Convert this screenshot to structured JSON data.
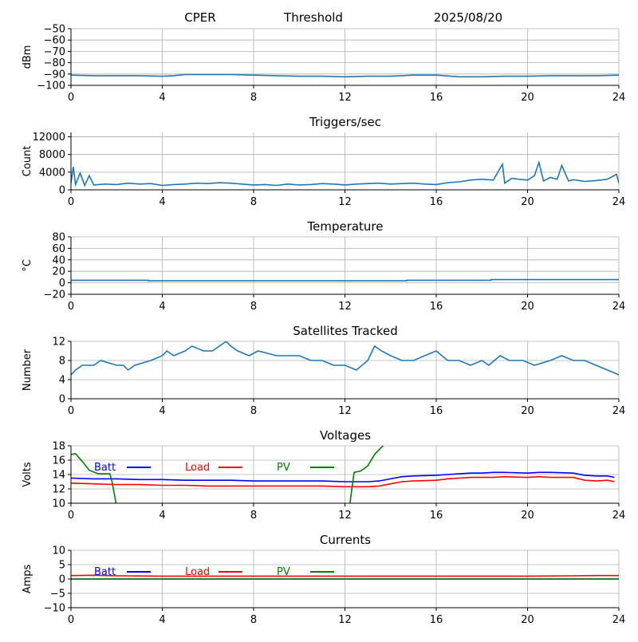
{
  "header": {
    "station": "CPER",
    "mode": "Threshold",
    "date": "2025/08/20"
  },
  "chart_data": [
    {
      "type": "line",
      "title": "",
      "ylabel": "dBm",
      "xlim": [
        0,
        24
      ],
      "ylim": [
        -100,
        -50
      ],
      "xticks": [
        0,
        4,
        8,
        12,
        16,
        20,
        24
      ],
      "yticks": [
        -100,
        -90,
        -80,
        -70,
        -60,
        -50
      ],
      "grid": true,
      "series": [
        {
          "color": "#1f77b4",
          "x": [
            0,
            1,
            2,
            3,
            4,
            4.5,
            5,
            6,
            7,
            8,
            9,
            10,
            11,
            12,
            13,
            14,
            15,
            16,
            17,
            18,
            19,
            20,
            21,
            22,
            23,
            24
          ],
          "y": [
            -91,
            -91.5,
            -91.5,
            -91.5,
            -92,
            -91.5,
            -90.5,
            -90.5,
            -90.5,
            -91,
            -91.5,
            -92,
            -92,
            -92.5,
            -92,
            -92,
            -91,
            -91,
            -92.5,
            -92.5,
            -92,
            -92,
            -91.5,
            -91.5,
            -91.5,
            -91
          ]
        }
      ]
    },
    {
      "type": "line",
      "title": "Triggers/sec",
      "ylabel": "Count",
      "xlim": [
        0,
        24
      ],
      "ylim": [
        0,
        13000
      ],
      "xticks": [
        0,
        4,
        8,
        12,
        16,
        20,
        24
      ],
      "yticks": [
        0,
        4000,
        8000,
        12000
      ],
      "grid": true,
      "series": [
        {
          "color": "#1f77b4",
          "x": [
            0,
            0.1,
            0.2,
            0.4,
            0.6,
            0.8,
            1,
            1.5,
            2,
            2.5,
            3,
            3.5,
            4,
            4.5,
            5,
            5.5,
            6,
            6.5,
            7,
            7.5,
            8,
            8.5,
            9,
            9.5,
            10,
            10.5,
            11,
            11.5,
            12,
            12.5,
            13,
            13.5,
            14,
            14.5,
            15,
            15.5,
            16,
            16.5,
            17,
            17.5,
            18,
            18.5,
            18.9,
            19,
            19.3,
            19.6,
            20,
            20.3,
            20.5,
            20.7,
            21,
            21.3,
            21.5,
            21.8,
            22,
            22.5,
            23,
            23.5,
            23.9,
            24
          ],
          "y": [
            1500,
            5200,
            1200,
            3800,
            1000,
            3200,
            1100,
            1300,
            1200,
            1500,
            1300,
            1400,
            1000,
            1200,
            1300,
            1500,
            1400,
            1600,
            1500,
            1300,
            1100,
            1200,
            1000,
            1300,
            1100,
            1200,
            1400,
            1300,
            1100,
            1300,
            1400,
            1500,
            1300,
            1400,
            1500,
            1300,
            1200,
            1600,
            1800,
            2200,
            2400,
            2200,
            5800,
            1500,
            2600,
            2400,
            2200,
            3200,
            6200,
            2000,
            2800,
            2400,
            5500,
            2000,
            2300,
            1900,
            2100,
            2400,
            3500,
            1500
          ]
        }
      ]
    },
    {
      "type": "line",
      "title": "Temperature",
      "ylabel": "°C",
      "xlim": [
        0,
        24
      ],
      "ylim": [
        -20,
        80
      ],
      "xticks": [
        0,
        4,
        8,
        12,
        16,
        20,
        24
      ],
      "yticks": [
        -20,
        0,
        20,
        40,
        60,
        80
      ],
      "grid": true,
      "series": [
        {
          "color": "#1f77b4",
          "x": [
            0,
            3.4,
            3.4,
            14.7,
            14.7,
            18.4,
            18.4,
            24
          ],
          "y": [
            4.5,
            4.5,
            3.5,
            3.5,
            4.5,
            4.5,
            5.5,
            5.5
          ]
        }
      ]
    },
    {
      "type": "line",
      "title": "Satellites Tracked",
      "ylabel": "Number",
      "xlim": [
        0,
        24
      ],
      "ylim": [
        0,
        12
      ],
      "xticks": [
        0,
        4,
        8,
        12,
        16,
        20,
        24
      ],
      "yticks": [
        0,
        4,
        8,
        12
      ],
      "grid": true,
      "series": [
        {
          "color": "#1f77b4",
          "x": [
            0,
            0.2,
            0.5,
            1,
            1.3,
            2,
            2.3,
            2.5,
            2.8,
            3.5,
            4,
            4.2,
            4.5,
            5,
            5.3,
            5.8,
            6.2,
            6.8,
            7,
            7.3,
            7.8,
            8.2,
            9,
            10,
            10.5,
            11,
            11.5,
            12,
            12.5,
            13,
            13.3,
            13.6,
            14,
            14.5,
            15,
            15.5,
            16,
            16.5,
            17,
            17.5,
            18,
            18.3,
            18.8,
            19.2,
            19.8,
            20.3,
            21,
            21.5,
            22,
            22.5,
            23,
            23.5,
            24
          ],
          "y": [
            5,
            6,
            7,
            7,
            8,
            7,
            7,
            6,
            7,
            8,
            9,
            10,
            9,
            10,
            11,
            10,
            10,
            12,
            11,
            10,
            9,
            10,
            9,
            9,
            8,
            8,
            7,
            7,
            6,
            8,
            11,
            10,
            9,
            8,
            8,
            9,
            10,
            8,
            8,
            7,
            8,
            7,
            9,
            8,
            8,
            7,
            8,
            9,
            8,
            8,
            7,
            6,
            5
          ]
        }
      ]
    },
    {
      "type": "line",
      "title": "Voltages",
      "ylabel": "Volts",
      "xlim": [
        0,
        24
      ],
      "ylim": [
        10,
        18
      ],
      "xticks": [
        0,
        4,
        8,
        12,
        16,
        20,
        24
      ],
      "yticks": [
        10,
        12,
        14,
        16,
        18
      ],
      "grid": true,
      "legend": [
        "Batt",
        "Load",
        "PV"
      ],
      "legend_placement": "top-left",
      "series": [
        {
          "name": "Batt",
          "color": "#0000ff",
          "x": [
            0,
            1,
            2,
            3,
            4,
            5,
            6,
            7,
            8,
            9,
            10,
            11,
            12,
            12.5,
            13,
            13.5,
            14,
            14.5,
            15,
            16,
            16.5,
            17,
            17.5,
            18,
            18.5,
            19,
            20,
            20.5,
            21,
            22,
            22.5,
            23,
            23.5,
            23.8
          ],
          "y": [
            13.5,
            13.4,
            13.4,
            13.3,
            13.3,
            13.2,
            13.2,
            13.2,
            13.1,
            13.1,
            13.1,
            13.1,
            13.0,
            13.0,
            13.0,
            13.1,
            13.4,
            13.7,
            13.8,
            13.9,
            14.0,
            14.1,
            14.2,
            14.2,
            14.3,
            14.3,
            14.2,
            14.3,
            14.3,
            14.2,
            13.9,
            13.8,
            13.8,
            13.6
          ]
        },
        {
          "name": "Load",
          "color": "#ff0000",
          "x": [
            0,
            1,
            2,
            3,
            4,
            5,
            6,
            7,
            8,
            9,
            10,
            11,
            12,
            12.5,
            13,
            13.5,
            14,
            14.5,
            15,
            16,
            16.5,
            17,
            17.5,
            18,
            18.5,
            19,
            20,
            20.5,
            21,
            22,
            22.5,
            23,
            23.5,
            23.8
          ],
          "y": [
            12.8,
            12.7,
            12.6,
            12.6,
            12.5,
            12.5,
            12.4,
            12.4,
            12.4,
            12.4,
            12.4,
            12.4,
            12.3,
            12.3,
            12.3,
            12.4,
            12.7,
            13.0,
            13.1,
            13.2,
            13.4,
            13.5,
            13.6,
            13.6,
            13.6,
            13.7,
            13.6,
            13.7,
            13.6,
            13.6,
            13.2,
            13.1,
            13.2,
            13.0
          ]
        },
        {
          "name": "PV",
          "color": "#008000",
          "x": [
            0,
            0.2,
            0.5,
            0.8,
            1.2,
            1.5,
            1.7,
            1.8,
            2.0,
            2.2,
            12.0,
            12.2,
            12.4,
            12.7,
            13.0,
            13.3,
            13.6,
            13.9
          ],
          "y": [
            16.8,
            16.9,
            15.8,
            14.6,
            14.1,
            14.1,
            14.1,
            13.0,
            9.5,
            8.0,
            8.0,
            9.5,
            14.3,
            14.5,
            15.2,
            16.8,
            17.8,
            18.6
          ]
        }
      ]
    },
    {
      "type": "line",
      "title": "Currents",
      "ylabel": "Amps",
      "xlim": [
        0,
        24
      ],
      "ylim": [
        -10,
        10
      ],
      "xticks": [
        0,
        4,
        8,
        12,
        16,
        20,
        24
      ],
      "yticks": [
        -10,
        -5,
        0,
        5,
        10
      ],
      "grid": true,
      "legend": [
        "Batt",
        "Load",
        "PV"
      ],
      "legend_placement": "top-left",
      "series": [
        {
          "name": "Batt",
          "color": "#0000ff",
          "x": [
            0,
            24
          ],
          "y": [
            0,
            0
          ]
        },
        {
          "name": "Load",
          "color": "#ff0000",
          "x": [
            0,
            1,
            2,
            4,
            8,
            12,
            16,
            20,
            22,
            23,
            24
          ],
          "y": [
            1.2,
            1.3,
            1.1,
            1.0,
            1.0,
            1.0,
            1.0,
            1.0,
            1.1,
            1.2,
            1.2
          ]
        },
        {
          "name": "PV",
          "color": "#008000",
          "x": [
            0,
            24
          ],
          "y": [
            0,
            0
          ]
        }
      ]
    }
  ]
}
